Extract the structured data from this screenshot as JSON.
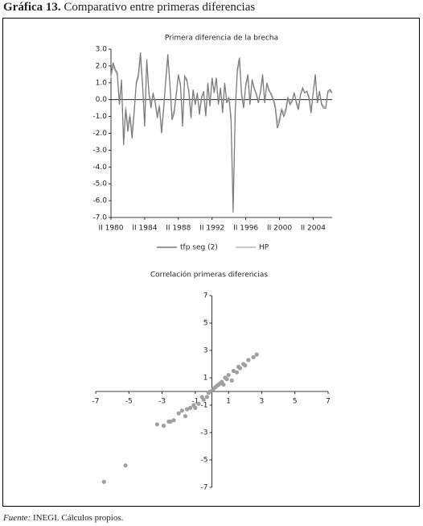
{
  "header": {
    "label": "Gráfica 13.",
    "title": "Comparativo entre primeras diferencias"
  },
  "chart_data": [
    {
      "type": "line",
      "title": "Primera diferencia de la brecha",
      "categories": [
        "II 1980",
        null,
        null,
        null,
        null,
        null,
        null,
        null,
        null,
        null,
        null,
        null,
        null,
        null,
        null,
        null,
        "II 1984",
        null,
        null,
        null,
        null,
        null,
        null,
        null,
        null,
        null,
        null,
        null,
        null,
        null,
        null,
        null,
        "II 1988",
        null,
        null,
        null,
        null,
        null,
        null,
        null,
        null,
        null,
        null,
        null,
        null,
        null,
        null,
        null,
        "II 1992",
        null,
        null,
        null,
        null,
        null,
        null,
        null,
        null,
        null,
        null,
        null,
        null,
        null,
        null,
        null,
        "II 1996",
        null,
        null,
        null,
        null,
        null,
        null,
        null,
        null,
        null,
        null,
        null,
        null,
        null,
        null,
        null,
        "II 2000",
        null,
        null,
        null,
        null,
        null,
        null,
        null,
        null,
        null,
        null,
        null,
        null,
        null,
        null,
        null,
        "II 2004",
        null,
        null,
        null,
        null,
        null,
        null,
        null,
        null,
        null
      ],
      "series": [
        {
          "name": "tfp seg (2)",
          "color": "#7a7a7a",
          "values": [
            1.5,
            2.2,
            1.8,
            1.6,
            -0.3,
            1.2,
            -2.7,
            -0.6,
            -1.9,
            -1.0,
            -2.3,
            -0.8,
            1.0,
            1.5,
            2.8,
            0.9,
            -1.6,
            2.4,
            0.4,
            -0.5,
            0.4,
            -0.2,
            -1.1,
            -0.4,
            -2.0,
            -0.6,
            1.2,
            2.7,
            0.9,
            -1.2,
            -0.8,
            0.3,
            1.5,
            0.9,
            -1.6,
            1.4,
            1.2,
            0.4,
            -1.1,
            0.6,
            -0.3,
            0.4,
            -0.9,
            0.1,
            0.5,
            -1.0,
            1.0,
            -0.4,
            1.3,
            0.4,
            1.3,
            -0.3,
            0.7,
            -0.8,
            1.0,
            -0.2,
            0.1,
            -1.2,
            -6.7,
            -0.7,
            1.8,
            2.5,
            0.3,
            -0.5,
            0.9,
            1.5,
            -0.3,
            1.2,
            0.7,
            0.3,
            -0.2,
            0.5,
            1.5,
            -0.2,
            1.0,
            0.6,
            0.3,
            0.0,
            -0.5,
            -1.7,
            -1.3,
            -0.6,
            -1.0,
            -0.7,
            0.1,
            -0.3,
            -0.1,
            0.4,
            -0.2,
            -0.6,
            0.3,
            0.7,
            0.4,
            0.5,
            0.1,
            -0.8,
            0.4,
            1.5,
            -0.2,
            0.5,
            -0.3,
            -0.5,
            -0.5,
            0.5,
            0.6,
            0.4
          ]
        },
        {
          "name": "HP",
          "color": "#b8b8b8",
          "values": [
            1.3,
            2.0,
            1.7,
            1.4,
            -0.1,
            1.0,
            -2.4,
            -0.4,
            -1.6,
            -0.8,
            -2.0,
            -0.6,
            0.9,
            1.3,
            2.5,
            0.8,
            -1.4,
            2.2,
            0.5,
            -0.3,
            0.3,
            -0.1,
            -0.9,
            -0.3,
            -1.8,
            -0.4,
            1.0,
            2.5,
            0.8,
            -1.0,
            -0.6,
            0.4,
            1.4,
            0.8,
            -1.4,
            1.3,
            1.1,
            0.5,
            -0.9,
            0.5,
            -0.2,
            0.3,
            -0.7,
            0.2,
            0.4,
            -0.8,
            0.9,
            -0.3,
            1.2,
            0.5,
            1.2,
            -0.2,
            0.6,
            -0.6,
            0.9,
            -0.1,
            0.2,
            -1.0,
            -6.4,
            -0.5,
            1.6,
            2.3,
            0.4,
            -0.3,
            0.8,
            1.3,
            -0.1,
            1.1,
            0.6,
            0.4,
            -0.1,
            0.4,
            1.3,
            -0.1,
            0.9,
            0.5,
            0.4,
            0.1,
            -0.3,
            -1.4,
            -1.1,
            -0.5,
            -0.8,
            -0.5,
            0.2,
            -0.2,
            0.0,
            0.4,
            -0.1,
            -0.4,
            0.3,
            0.6,
            0.4,
            0.5,
            0.2,
            -0.6,
            0.4,
            1.3,
            -0.1,
            0.5,
            -0.2,
            -0.4,
            -0.4,
            0.4,
            0.5,
            0.4
          ]
        }
      ],
      "ylim": [
        -7,
        3
      ],
      "yticks": [
        {
          "value": -7,
          "label": "-7.0"
        },
        {
          "value": -6,
          "label": "-6.0"
        },
        {
          "value": -5,
          "label": "-5.0"
        },
        {
          "value": -4,
          "label": "-4.0"
        },
        {
          "value": -3,
          "label": "-3.0"
        },
        {
          "value": -2,
          "label": "-2.0"
        },
        {
          "value": -1,
          "label": "-1.0"
        },
        {
          "value": 0,
          "label": "0.0"
        },
        {
          "value": 1,
          "label": "1.0"
        },
        {
          "value": 2,
          "label": "2.0"
        },
        {
          "value": 3,
          "label": "3.0"
        }
      ],
      "legend": "bottom"
    },
    {
      "type": "scatter",
      "title": "Correlación primeras diferencias",
      "x": [
        -6.5,
        -5.2,
        -3.3,
        -2.9,
        -2.5,
        -2.3,
        -2.0,
        -1.8,
        -1.6,
        -1.3,
        -1.0,
        -0.8,
        -0.5,
        -0.3,
        -0.1,
        0.1,
        0.3,
        0.5,
        0.7,
        0.9,
        1.0,
        1.2,
        1.5,
        1.7,
        1.9,
        2.2,
        2.5,
        2.7,
        0.4,
        0.8,
        -0.6,
        -1.1,
        0.2,
        1.3,
        0.6,
        -0.2,
        1.6,
        2.0,
        -1.5,
        -2.6
      ],
      "values": [
        -6.6,
        -5.4,
        -2.4,
        -2.5,
        -2.2,
        -2.1,
        -1.6,
        -1.4,
        -1.8,
        -1.2,
        -1.2,
        -0.9,
        -0.6,
        -0.4,
        0.0,
        0.2,
        0.4,
        0.6,
        0.5,
        0.9,
        1.2,
        0.8,
        1.4,
        1.7,
        2.0,
        2.3,
        2.5,
        2.7,
        0.5,
        1.0,
        -0.4,
        -1.0,
        0.3,
        1.5,
        0.7,
        -0.1,
        1.8,
        1.9,
        -1.3,
        -2.2
      ],
      "color": "#a0a0a0",
      "xlim": [
        -7,
        7
      ],
      "ylim": [
        -7,
        7
      ],
      "xticks": [
        -7,
        -5,
        -3,
        -1,
        1,
        3,
        5,
        7
      ],
      "yticks": [
        -7,
        -5,
        -3,
        -1,
        1,
        3,
        5,
        7
      ]
    }
  ],
  "footer": {
    "label": "Fuente:",
    "source": "INEGI. Cálculos propios."
  }
}
